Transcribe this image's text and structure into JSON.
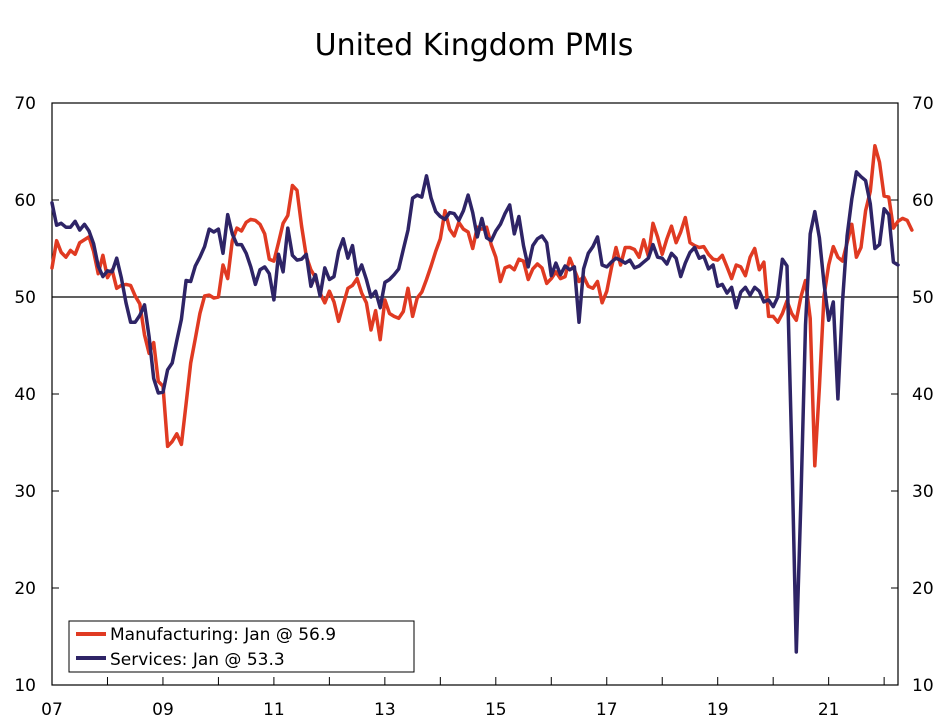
{
  "chart_data": {
    "type": "line",
    "title": "United Kingdom PMIs",
    "xlabel": "",
    "ylabel": "",
    "ylim": [
      10,
      70
    ],
    "yticks": [
      10,
      20,
      30,
      40,
      50,
      60,
      70
    ],
    "reference_line": 50,
    "xlim": [
      2007.0,
      2022.25
    ],
    "x_start": 2007.0,
    "x_step_months": 1,
    "x_tick_labels": [
      {
        "x": 2007,
        "label": "07"
      },
      {
        "x": 2009,
        "label": "09"
      },
      {
        "x": 2011,
        "label": "11"
      },
      {
        "x": 2013,
        "label": "13"
      },
      {
        "x": 2015,
        "label": "15"
      },
      {
        "x": 2017,
        "label": "17"
      },
      {
        "x": 2019,
        "label": "19"
      },
      {
        "x": 2021,
        "label": "21"
      }
    ],
    "legend_position": "bottom-left",
    "series": [
      {
        "name": "Manufacturing",
        "legend": "Manufacturing: Jan @ 56.9",
        "color": "#e03a22",
        "values": [
          53.0,
          55.8,
          54.6,
          54.1,
          54.8,
          54.4,
          55.6,
          55.9,
          56.2,
          54.7,
          52.4,
          54.3,
          52.0,
          52.8,
          50.9,
          51.2,
          51.3,
          51.2,
          50.1,
          49.3,
          46.1,
          44.2,
          45.3,
          41.3,
          40.8,
          34.6,
          35.1,
          35.9,
          34.8,
          39.0,
          43.2,
          45.7,
          48.3,
          50.1,
          50.2,
          49.9,
          50.0,
          53.3,
          51.9,
          55.8,
          57.1,
          56.8,
          57.7,
          58.0,
          57.9,
          57.5,
          56.5,
          53.9,
          53.7,
          55.6,
          57.6,
          58.4,
          61.5,
          61.0,
          57.3,
          54.2,
          52.8,
          52.0,
          50.4,
          49.4,
          50.6,
          49.5,
          47.5,
          49.2,
          50.9,
          51.2,
          51.9,
          50.4,
          49.4,
          46.6,
          48.6,
          45.6,
          49.7,
          48.3,
          48.0,
          47.8,
          48.5,
          50.9,
          48.0,
          49.9,
          50.5,
          51.8,
          53.2,
          54.7,
          56.0,
          58.9,
          57.0,
          56.3,
          57.7,
          57.0,
          56.7,
          55.0,
          57.2,
          57.0,
          57.2,
          55.4,
          54.1,
          51.6,
          53.0,
          53.2,
          52.8,
          53.9,
          53.7,
          51.8,
          52.9,
          53.4,
          53.0,
          51.4,
          51.9,
          52.6,
          51.9,
          52.1,
          54.0,
          52.8,
          51.6,
          52.1,
          51.1,
          50.9,
          51.6,
          49.4,
          50.6,
          53.0,
          55.1,
          53.3,
          55.1,
          55.1,
          54.9,
          54.1,
          55.9,
          54.2,
          57.6,
          56.2,
          54.4,
          56.0,
          57.3,
          55.6,
          56.7,
          58.2,
          55.6,
          55.3,
          55.1,
          55.2,
          54.4,
          53.9,
          53.8,
          54.3,
          53.1,
          51.9,
          53.3,
          53.1,
          52.2,
          54.1,
          55.0,
          52.8,
          53.6,
          48.0,
          48.0,
          47.4,
          48.3,
          49.6,
          48.3,
          47.6,
          50.0,
          51.7,
          47.8,
          32.6,
          40.7,
          50.1,
          53.3,
          55.2,
          54.1,
          53.7,
          55.6,
          57.5,
          54.1,
          55.1,
          58.9,
          60.9,
          65.6,
          63.9,
          60.4,
          60.3,
          57.1,
          57.8,
          58.1,
          57.9,
          56.9
        ]
      },
      {
        "name": "Services",
        "legend": "Services: Jan @ 53.3",
        "color": "#2e2466",
        "values": [
          59.7,
          57.4,
          57.6,
          57.2,
          57.2,
          57.8,
          56.9,
          57.5,
          56.8,
          55.5,
          53.2,
          52.1,
          52.7,
          52.6,
          54.0,
          52.0,
          49.4,
          47.4,
          47.4,
          48.1,
          49.2,
          45.9,
          41.6,
          40.1,
          40.2,
          42.5,
          43.2,
          45.5,
          47.7,
          51.7,
          51.6,
          53.2,
          54.1,
          55.2,
          57.0,
          56.7,
          57.0,
          54.5,
          58.5,
          56.5,
          55.4,
          55.4,
          54.5,
          53.1,
          51.3,
          52.8,
          53.1,
          52.4,
          49.7,
          54.4,
          52.6,
          57.1,
          54.3,
          53.8,
          53.9,
          54.4,
          51.1,
          52.3,
          50.1,
          53.0,
          51.8,
          52.1,
          54.7,
          56.0,
          54.0,
          55.3,
          52.3,
          53.3,
          51.8,
          50.0,
          50.6,
          48.9,
          51.5,
          51.8,
          52.3,
          52.9,
          54.9,
          56.9,
          60.2,
          60.5,
          60.3,
          62.5,
          60.2,
          58.8,
          58.3,
          58.0,
          58.7,
          58.6,
          57.9,
          58.9,
          60.5,
          58.7,
          56.2,
          58.1,
          56.1,
          55.8,
          56.8,
          57.5,
          58.6,
          59.5,
          56.5,
          58.3,
          55.3,
          53.1,
          55.3,
          56.0,
          56.3,
          55.6,
          52.2,
          53.5,
          52.3,
          53.2,
          52.8,
          53.1,
          47.4,
          52.9,
          54.5,
          55.2,
          56.2,
          53.3,
          53.1,
          53.6,
          54.0,
          53.8,
          53.5,
          53.8,
          53.0,
          53.2,
          53.6,
          54.0,
          55.4,
          54.1,
          54.0,
          53.4,
          54.5,
          54.0,
          52.1,
          53.5,
          54.6,
          55.1,
          54.0,
          54.2,
          52.9,
          53.3,
          51.1,
          51.3,
          50.4,
          51.0,
          48.9,
          50.5,
          51.0,
          50.2,
          51.0,
          50.6,
          49.5,
          49.7,
          49.0,
          50.0,
          53.9,
          53.2,
          34.5,
          13.4,
          29.0,
          47.1,
          56.5,
          58.8,
          56.1,
          51.4,
          47.6,
          49.5,
          39.5,
          49.5,
          56.3,
          60.1,
          62.9,
          62.4,
          62.0,
          59.6,
          55.0,
          55.4,
          59.1,
          58.5,
          53.6,
          53.3
        ]
      }
    ]
  }
}
